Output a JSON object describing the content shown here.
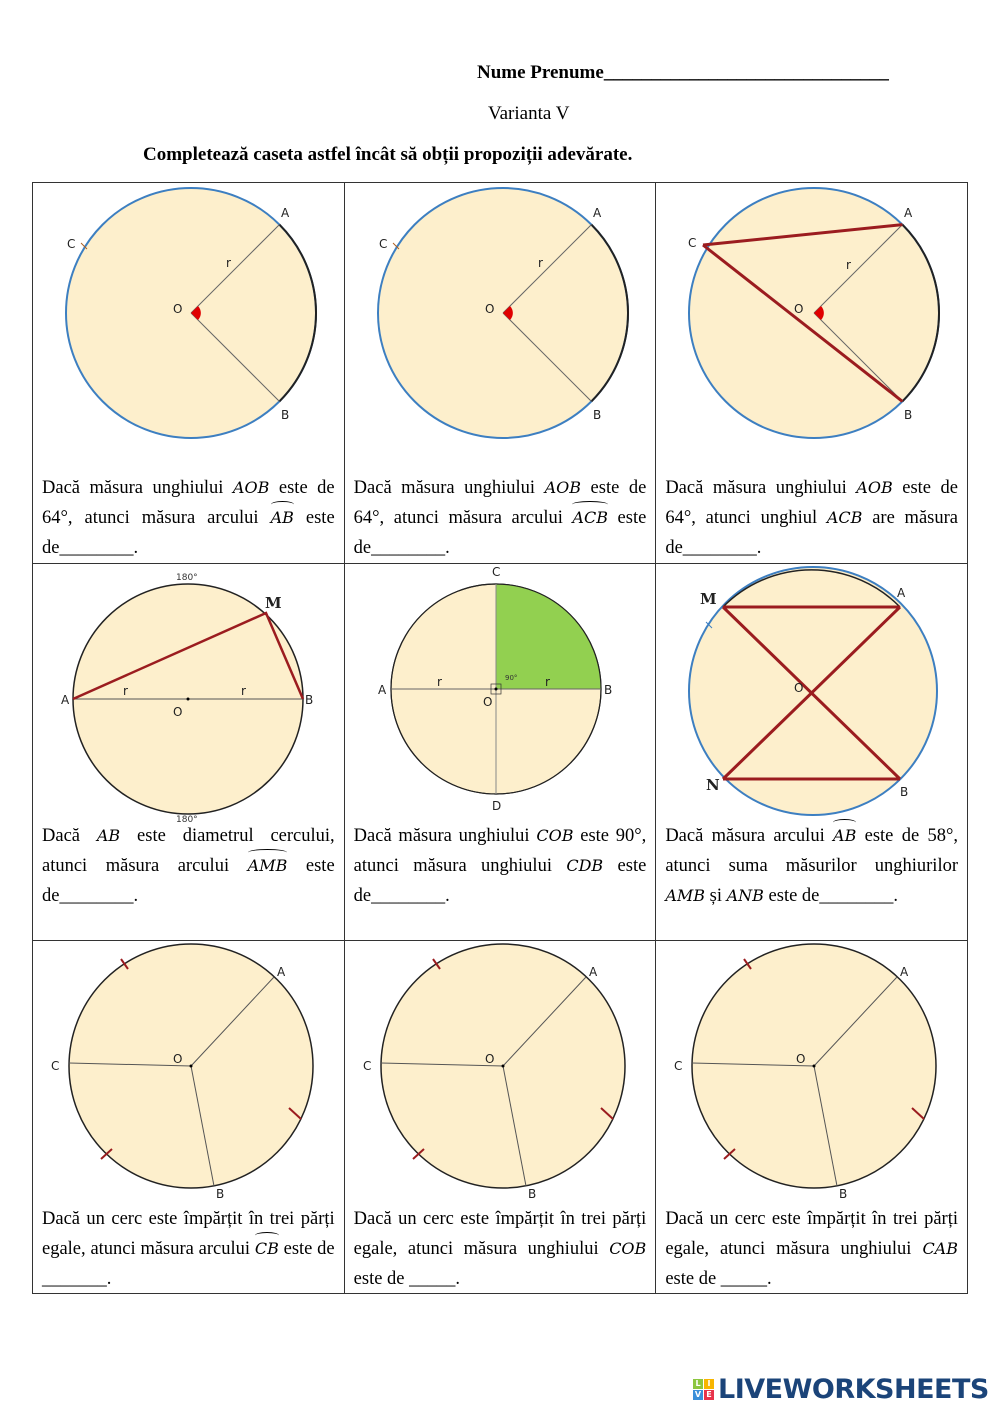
{
  "header": {
    "name_label": "Nume Prenume______________________________",
    "variant": "Varianta V",
    "instruction": "Completează caseta astfel încât să obții propoziții adevărate."
  },
  "labels": {
    "A": "A",
    "B": "B",
    "C": "C",
    "D": "D",
    "O": "O",
    "M": "M",
    "N": "N",
    "r": "r",
    "deg180": "180°",
    "deg90": "90°"
  },
  "cells": [
    {
      "parts": [
        "Dacă măsura unghiului ",
        "AOB",
        " este de 64°, atunci măsura arcului ",
        "AB",
        " este de________."
      ]
    },
    {
      "parts": [
        "Dacă măsura unghiului ",
        "AOB",
        " este de 64°, atunci măsura arcului ",
        "ACB",
        " este de________."
      ]
    },
    {
      "parts": [
        "Dacă măsura unghiului ",
        "AOB",
        " este de 64°, atunci unghiul ",
        "ACB",
        " are măsura de________."
      ]
    },
    {
      "parts": [
        "Dacă ",
        "AB",
        " este diametrul cercului, atunci măsura arcului ",
        "AMB",
        " este de________."
      ]
    },
    {
      "parts": [
        "Dacă măsura unghiului ",
        "COB",
        " este 90°, atunci măsura unghiului ",
        "CDB",
        " este de________."
      ]
    },
    {
      "parts": [
        "Dacă măsura arcului ",
        "AB",
        " este de 58°, atunci suma măsurilor unghiurilor ",
        "AMB",
        " și ",
        "ANB",
        " este de________."
      ]
    },
    {
      "parts": [
        "Dacă un cerc este împărțit în trei părți egale, atunci măsura arcului ",
        "CB",
        " este de _______."
      ]
    },
    {
      "parts": [
        "Dacă un cerc este împărțit în trei părți egale, atunci măsura unghiului ",
        "COB",
        " este de _____."
      ]
    },
    {
      "parts": [
        "Dacă un cerc este împărțit în trei părți egale, atunci măsura unghiului ",
        "CAB",
        " este de _____."
      ]
    }
  ],
  "logo": {
    "text": "LIVEWORKSHEETS",
    "tiles": [
      "L",
      "I",
      "V",
      "E"
    ]
  },
  "colors": {
    "fill": "#fdefcc",
    "blue": "#3d7fc1",
    "red": "#9b1c1f",
    "green": "#92d050",
    "angle": "#e00000"
  }
}
